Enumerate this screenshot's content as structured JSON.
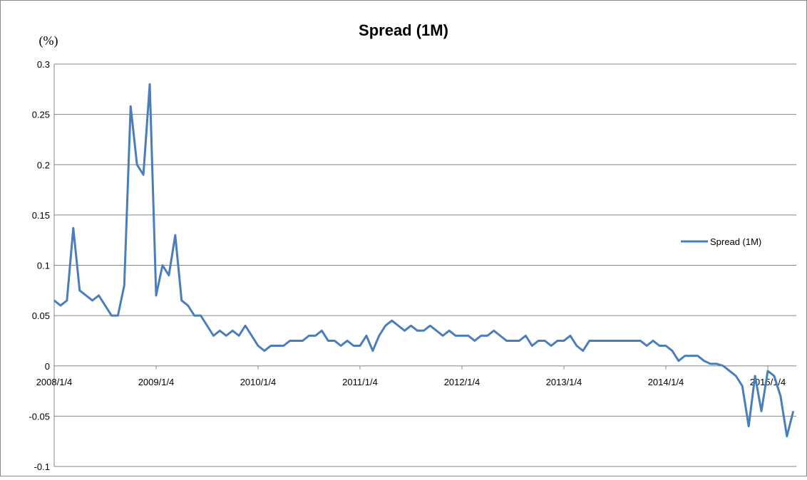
{
  "chart_data": {
    "type": "line",
    "title": "Spread (1M)",
    "y_label": "(%)",
    "categories": [
      "2008/1/4",
      null,
      null,
      null,
      null,
      null,
      null,
      null,
      null,
      null,
      null,
      null,
      null,
      null,
      null,
      null,
      "2009/1/4",
      null,
      null,
      null,
      null,
      null,
      null,
      null,
      null,
      null,
      null,
      null,
      null,
      null,
      null,
      null,
      "2010/1/4",
      null,
      null,
      null,
      null,
      null,
      null,
      null,
      null,
      null,
      null,
      null,
      null,
      null,
      null,
      null,
      "2011/1/4",
      null,
      null,
      null,
      null,
      null,
      null,
      null,
      null,
      null,
      null,
      null,
      null,
      null,
      null,
      null,
      "2012/1/4",
      null,
      null,
      null,
      null,
      null,
      null,
      null,
      null,
      null,
      null,
      null,
      null,
      null,
      null,
      null,
      "2013/1/4",
      null,
      null,
      null,
      null,
      null,
      null,
      null,
      null,
      null,
      null,
      null,
      null,
      null,
      null,
      null,
      "2014/1/4",
      null,
      null,
      null,
      null,
      null,
      null,
      null,
      null,
      null,
      null,
      null,
      null,
      null,
      null,
      null,
      "2015/1/4",
      null,
      null,
      null,
      null
    ],
    "series": [
      {
        "name": "Spread (1M)",
        "color": "#4a7ebb",
        "values": [
          0.065,
          0.06,
          0.065,
          0.137,
          0.075,
          0.07,
          0.065,
          0.07,
          0.06,
          0.05,
          0.05,
          0.08,
          0.258,
          0.2,
          0.19,
          0.28,
          0.07,
          0.1,
          0.09,
          0.13,
          0.065,
          0.06,
          0.05,
          0.05,
          0.04,
          0.03,
          0.035,
          0.03,
          0.035,
          0.03,
          0.04,
          0.03,
          0.02,
          0.015,
          0.02,
          0.02,
          0.02,
          0.025,
          0.025,
          0.025,
          0.03,
          0.03,
          0.035,
          0.025,
          0.025,
          0.02,
          0.025,
          0.02,
          0.02,
          0.03,
          0.015,
          0.03,
          0.04,
          0.045,
          0.04,
          0.035,
          0.04,
          0.035,
          0.035,
          0.04,
          0.035,
          0.03,
          0.035,
          0.03,
          0.03,
          0.03,
          0.025,
          0.03,
          0.03,
          0.035,
          0.03,
          0.025,
          0.025,
          0.025,
          0.03,
          0.02,
          0.025,
          0.025,
          0.02,
          0.025,
          0.025,
          0.03,
          0.02,
          0.015,
          0.025,
          0.025,
          0.025,
          0.025,
          0.025,
          0.025,
          0.025,
          0.025,
          0.025,
          0.02,
          0.025,
          0.02,
          0.02,
          0.015,
          0.005,
          0.01,
          0.01,
          0.01,
          0.005,
          0.002,
          0.002,
          0,
          -0.005,
          -0.01,
          -0.02,
          -0.06,
          -0.01,
          -0.045,
          -0.005,
          -0.01,
          -0.03,
          -0.07,
          -0.045
        ]
      }
    ],
    "ylim": [
      -0.1,
      0.3
    ],
    "yticks": [
      -0.1,
      -0.05,
      0,
      0.05,
      0.1,
      0.15,
      0.2,
      0.25,
      0.3
    ],
    "grid": true,
    "legend": "right"
  }
}
